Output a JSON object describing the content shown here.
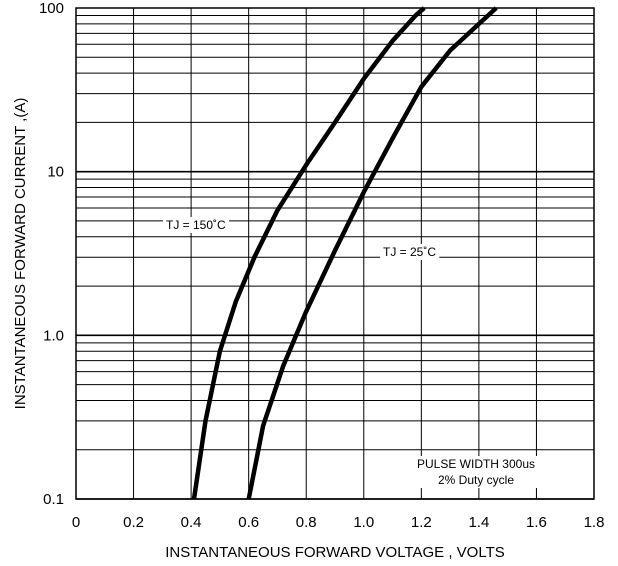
{
  "chart_data": {
    "type": "line",
    "xlabel": "INSTANTANEOUS FORWARD VOLTAGE , VOLTS",
    "ylabel": "INSTANTANEOUS  FORWARD CURRENT ,(A)",
    "xlim": [
      0,
      1.8
    ],
    "ylim": [
      0.1,
      100
    ],
    "y_scale": "log",
    "grid": true,
    "x_ticks": [
      {
        "value": 0,
        "label": "0"
      },
      {
        "value": 0.2,
        "label": "0.2"
      },
      {
        "value": 0.4,
        "label": "0.4"
      },
      {
        "value": 0.6,
        "label": "0.6"
      },
      {
        "value": 0.8,
        "label": "0.8"
      },
      {
        "value": 1.0,
        "label": "1.0"
      },
      {
        "value": 1.2,
        "label": "1.2"
      },
      {
        "value": 1.4,
        "label": "1.4"
      },
      {
        "value": 1.6,
        "label": "1.6"
      },
      {
        "value": 1.8,
        "label": "1.8"
      }
    ],
    "y_ticks": [
      {
        "value": 0.1,
        "label": "0.1"
      },
      {
        "value": 1,
        "label": "1.0"
      },
      {
        "value": 10,
        "label": "10"
      },
      {
        "value": 100,
        "label": "100"
      }
    ],
    "series": [
      {
        "name": "TJ = 150˚C",
        "color": "#000000",
        "points": [
          [
            0.41,
            0.1
          ],
          [
            0.45,
            0.3
          ],
          [
            0.5,
            0.8
          ],
          [
            0.555,
            1.6
          ],
          [
            0.62,
            3.0
          ],
          [
            0.7,
            5.8
          ],
          [
            0.8,
            11
          ],
          [
            0.9,
            20
          ],
          [
            1.0,
            37
          ],
          [
            1.1,
            63
          ],
          [
            1.18,
            90
          ],
          [
            1.21,
            100
          ]
        ]
      },
      {
        "name": "TJ = 25˚C",
        "color": "#000000",
        "points": [
          [
            0.6,
            0.1
          ],
          [
            0.65,
            0.28
          ],
          [
            0.72,
            0.65
          ],
          [
            0.8,
            1.4
          ],
          [
            0.9,
            3.3
          ],
          [
            1.0,
            7.5
          ],
          [
            1.1,
            16
          ],
          [
            1.2,
            33
          ],
          [
            1.3,
            55
          ],
          [
            1.4,
            80
          ],
          [
            1.46,
            100
          ]
        ]
      }
    ],
    "annotations": [
      "PULSE WIDTH 300us",
      "2% Duty cycle"
    ]
  }
}
